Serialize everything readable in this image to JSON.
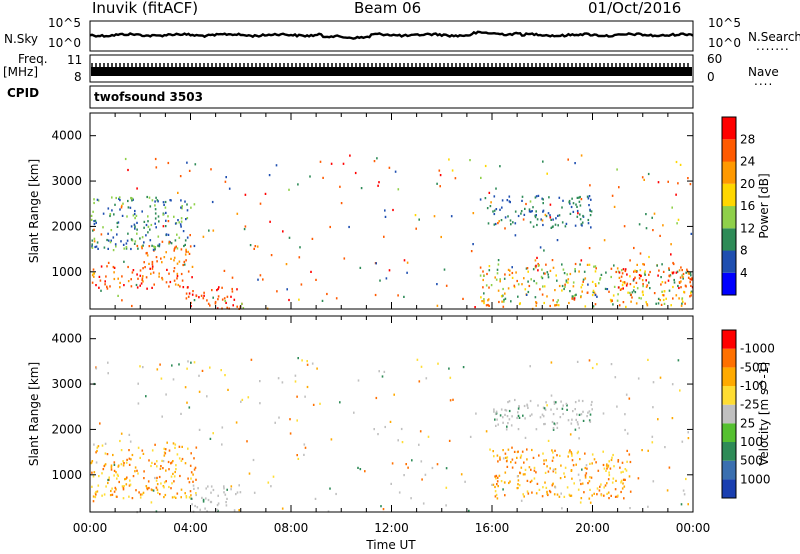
{
  "header": {
    "station": "Inuvik (fitACF)",
    "beam": "Beam 06",
    "date": "01/Oct/2016"
  },
  "left_labels": {
    "nsky": "N.Sky",
    "freq": "Freq.",
    "mhz": "[MHz]",
    "cpid": "CPID"
  },
  "right_labels": {
    "nsearch": "N.Search",
    "nsearch_dots": ".......",
    "nave": "Nave",
    "nave_dots": "...."
  },
  "noise_axis": {
    "top": "10^5",
    "bottom": "10^0"
  },
  "freq_axis": {
    "left_top": "11",
    "left_bottom": "8",
    "right_top": "60",
    "right_bottom": "0"
  },
  "cpid_text": "twofsound 3503",
  "x_ticks": [
    "00:00",
    "04:00",
    "08:00",
    "12:00",
    "16:00",
    "20:00",
    "00:00"
  ],
  "x_label": "Time UT",
  "y_label": "Slant Range [km]",
  "y_ticks": [
    "1000",
    "2000",
    "3000",
    "4000"
  ],
  "power_colorbar": {
    "label": "Power [dB]",
    "ticks": [
      "4",
      "8",
      "12",
      "16",
      "20",
      "24",
      "28"
    ],
    "colors": [
      "#0000ff",
      "#1f4fb0",
      "#2e8b57",
      "#8fd04a",
      "#ffd700",
      "#ff9900",
      "#ff5a00",
      "#ff0000"
    ]
  },
  "velocity_colorbar": {
    "label": "Velocity [m s^-1]",
    "ticks": [
      "1000",
      "500",
      "100",
      "25",
      "-25",
      "-100",
      "-500",
      "-1000"
    ],
    "colors": [
      "#1a3fb0",
      "#3a6fb0",
      "#2e8b57",
      "#55c030",
      "#c0c0c0",
      "#ffdd33",
      "#ffaa00",
      "#ff7000",
      "#ff0000"
    ]
  },
  "chart_data": [
    {
      "type": "heatmap",
      "title": "Power",
      "xlabel": "Time UT",
      "ylabel": "Slant Range [km]",
      "xlim": [
        "00:00",
        "24:00"
      ],
      "ylim": [
        180,
        4500
      ],
      "zlabel": "Power [dB]",
      "zlim": [
        0,
        30
      ],
      "regions": [
        {
          "t0": 0.0,
          "t1": 4.2,
          "r0": 650,
          "r1": 1150,
          "level": "22-30"
        },
        {
          "t0": 2.0,
          "t1": 4.0,
          "r0": 1100,
          "r1": 1600,
          "level": "20-28"
        },
        {
          "t0": 3.8,
          "t1": 6.2,
          "r0": 200,
          "r1": 700,
          "level": "24-30"
        },
        {
          "t0": 0.0,
          "t1": 4.0,
          "r0": 1500,
          "r1": 2700,
          "level": "4-16"
        },
        {
          "t0": 15.5,
          "t1": 24.0,
          "r0": 250,
          "r1": 1200,
          "level": "8-28"
        },
        {
          "t0": 21.0,
          "t1": 24.0,
          "r0": 650,
          "r1": 1100,
          "level": "24-30"
        },
        {
          "t0": 15.5,
          "t1": 20.0,
          "r0": 2000,
          "r1": 2700,
          "level": "4-12"
        }
      ]
    },
    {
      "type": "heatmap",
      "title": "Velocity",
      "xlabel": "Time UT",
      "ylabel": "Slant Range [km]",
      "xlim": [
        "00:00",
        "24:00"
      ],
      "ylim": [
        180,
        4500
      ],
      "zlabel": "Velocity [m s^-1]",
      "zlim": [
        -1000,
        1000
      ],
      "regions": [
        {
          "t0": 0.0,
          "t1": 4.2,
          "r0": 500,
          "r1": 1700,
          "level": "-100 to -500"
        },
        {
          "t0": 4.0,
          "t1": 6.0,
          "r0": 200,
          "r1": 800,
          "level": "-25 to 25"
        },
        {
          "t0": 16.0,
          "t1": 21.5,
          "r0": 500,
          "r1": 1600,
          "level": "-100 to -500"
        },
        {
          "t0": 16.0,
          "t1": 20.0,
          "r0": 2000,
          "r1": 2700,
          "level": "-25 to 25"
        }
      ]
    }
  ]
}
